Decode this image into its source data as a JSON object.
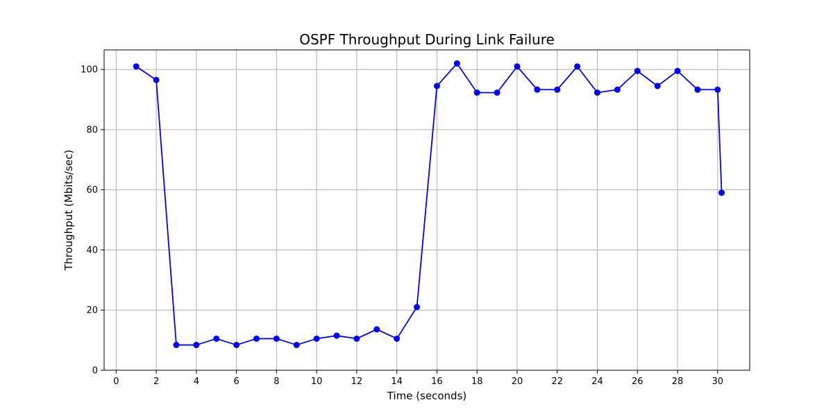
{
  "chart_data": {
    "type": "line",
    "title": "OSPF Throughput During Link Failure",
    "xlabel": "Time (seconds)",
    "ylabel": "Throughput (Mbits/sec)",
    "xlim": [
      -0.6,
      31.6
    ],
    "ylim": [
      0,
      106.5
    ],
    "xticks": [
      0,
      2,
      4,
      6,
      8,
      10,
      12,
      14,
      16,
      18,
      20,
      22,
      24,
      26,
      28,
      30
    ],
    "yticks": [
      0,
      20,
      40,
      60,
      80,
      100
    ],
    "grid": true,
    "series": [
      {
        "color": "#0000ff",
        "marker": "circle",
        "x": [
          1,
          2,
          3,
          4,
          5,
          6,
          7,
          8,
          9,
          10,
          11,
          12,
          13,
          14,
          15,
          16,
          17,
          18,
          19,
          20,
          21,
          22,
          23,
          24,
          25,
          26,
          27,
          28,
          29,
          30,
          30.2
        ],
        "y": [
          101,
          96.5,
          8.4,
          8.4,
          10.5,
          8.4,
          10.5,
          10.5,
          8.4,
          10.5,
          11.5,
          10.5,
          13.6,
          10.5,
          21,
          94.5,
          102,
          92.3,
          92.3,
          101,
          93.3,
          93.3,
          101,
          92.3,
          93.3,
          99.5,
          94.5,
          99.5,
          93.3,
          93.3,
          59
        ]
      }
    ]
  }
}
